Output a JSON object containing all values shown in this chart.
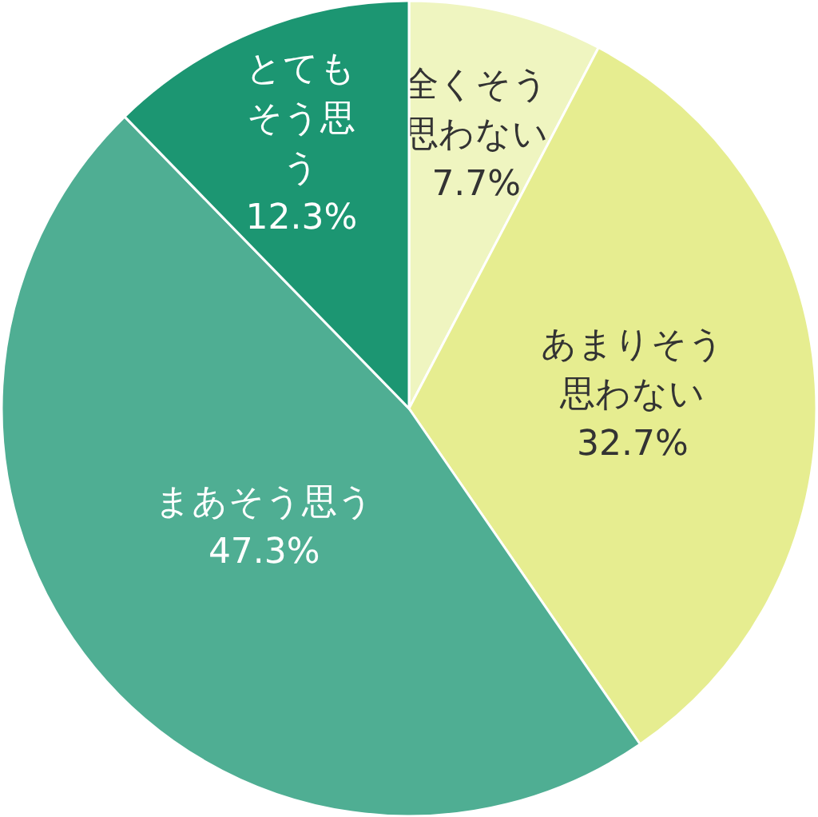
{
  "chart_data": {
    "type": "pie",
    "categories": [
      "全くそう思わない",
      "あまりそう思わない",
      "まあそう思う",
      "とてもそう思う"
    ],
    "values": [
      7.7,
      32.7,
      47.3,
      12.3
    ],
    "value_labels": [
      "7.7%",
      "32.7%",
      "47.3%",
      "12.3%"
    ],
    "colors": [
      "#eff5c0",
      "#e6ed90",
      "#4fae93",
      "#1c9672"
    ]
  }
}
